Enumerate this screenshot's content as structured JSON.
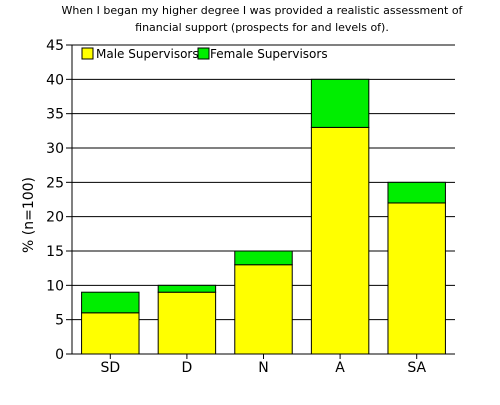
{
  "chart_data": {
    "type": "bar",
    "stacked": true,
    "title_lines": [
      "When I began my higher degree I was provided a realistic assessment of",
      "financial support (prospects for and levels of)."
    ],
    "xlabel": "",
    "ylabel": "% (n=100)",
    "categories": [
      "SD",
      "D",
      "N",
      "A",
      "SA"
    ],
    "series": [
      {
        "name": "Male Supervisors",
        "color": "#ffff00",
        "values": [
          6,
          9,
          13,
          33,
          22
        ]
      },
      {
        "name": "Female Supervisors",
        "color": "#00ee00",
        "values": [
          3,
          1,
          2,
          7,
          3
        ]
      }
    ],
    "ylim": [
      0,
      45
    ],
    "yticks": [
      0,
      5,
      10,
      15,
      20,
      25,
      30,
      35,
      40,
      45
    ],
    "grid": true,
    "legend_position": "top-left"
  }
}
